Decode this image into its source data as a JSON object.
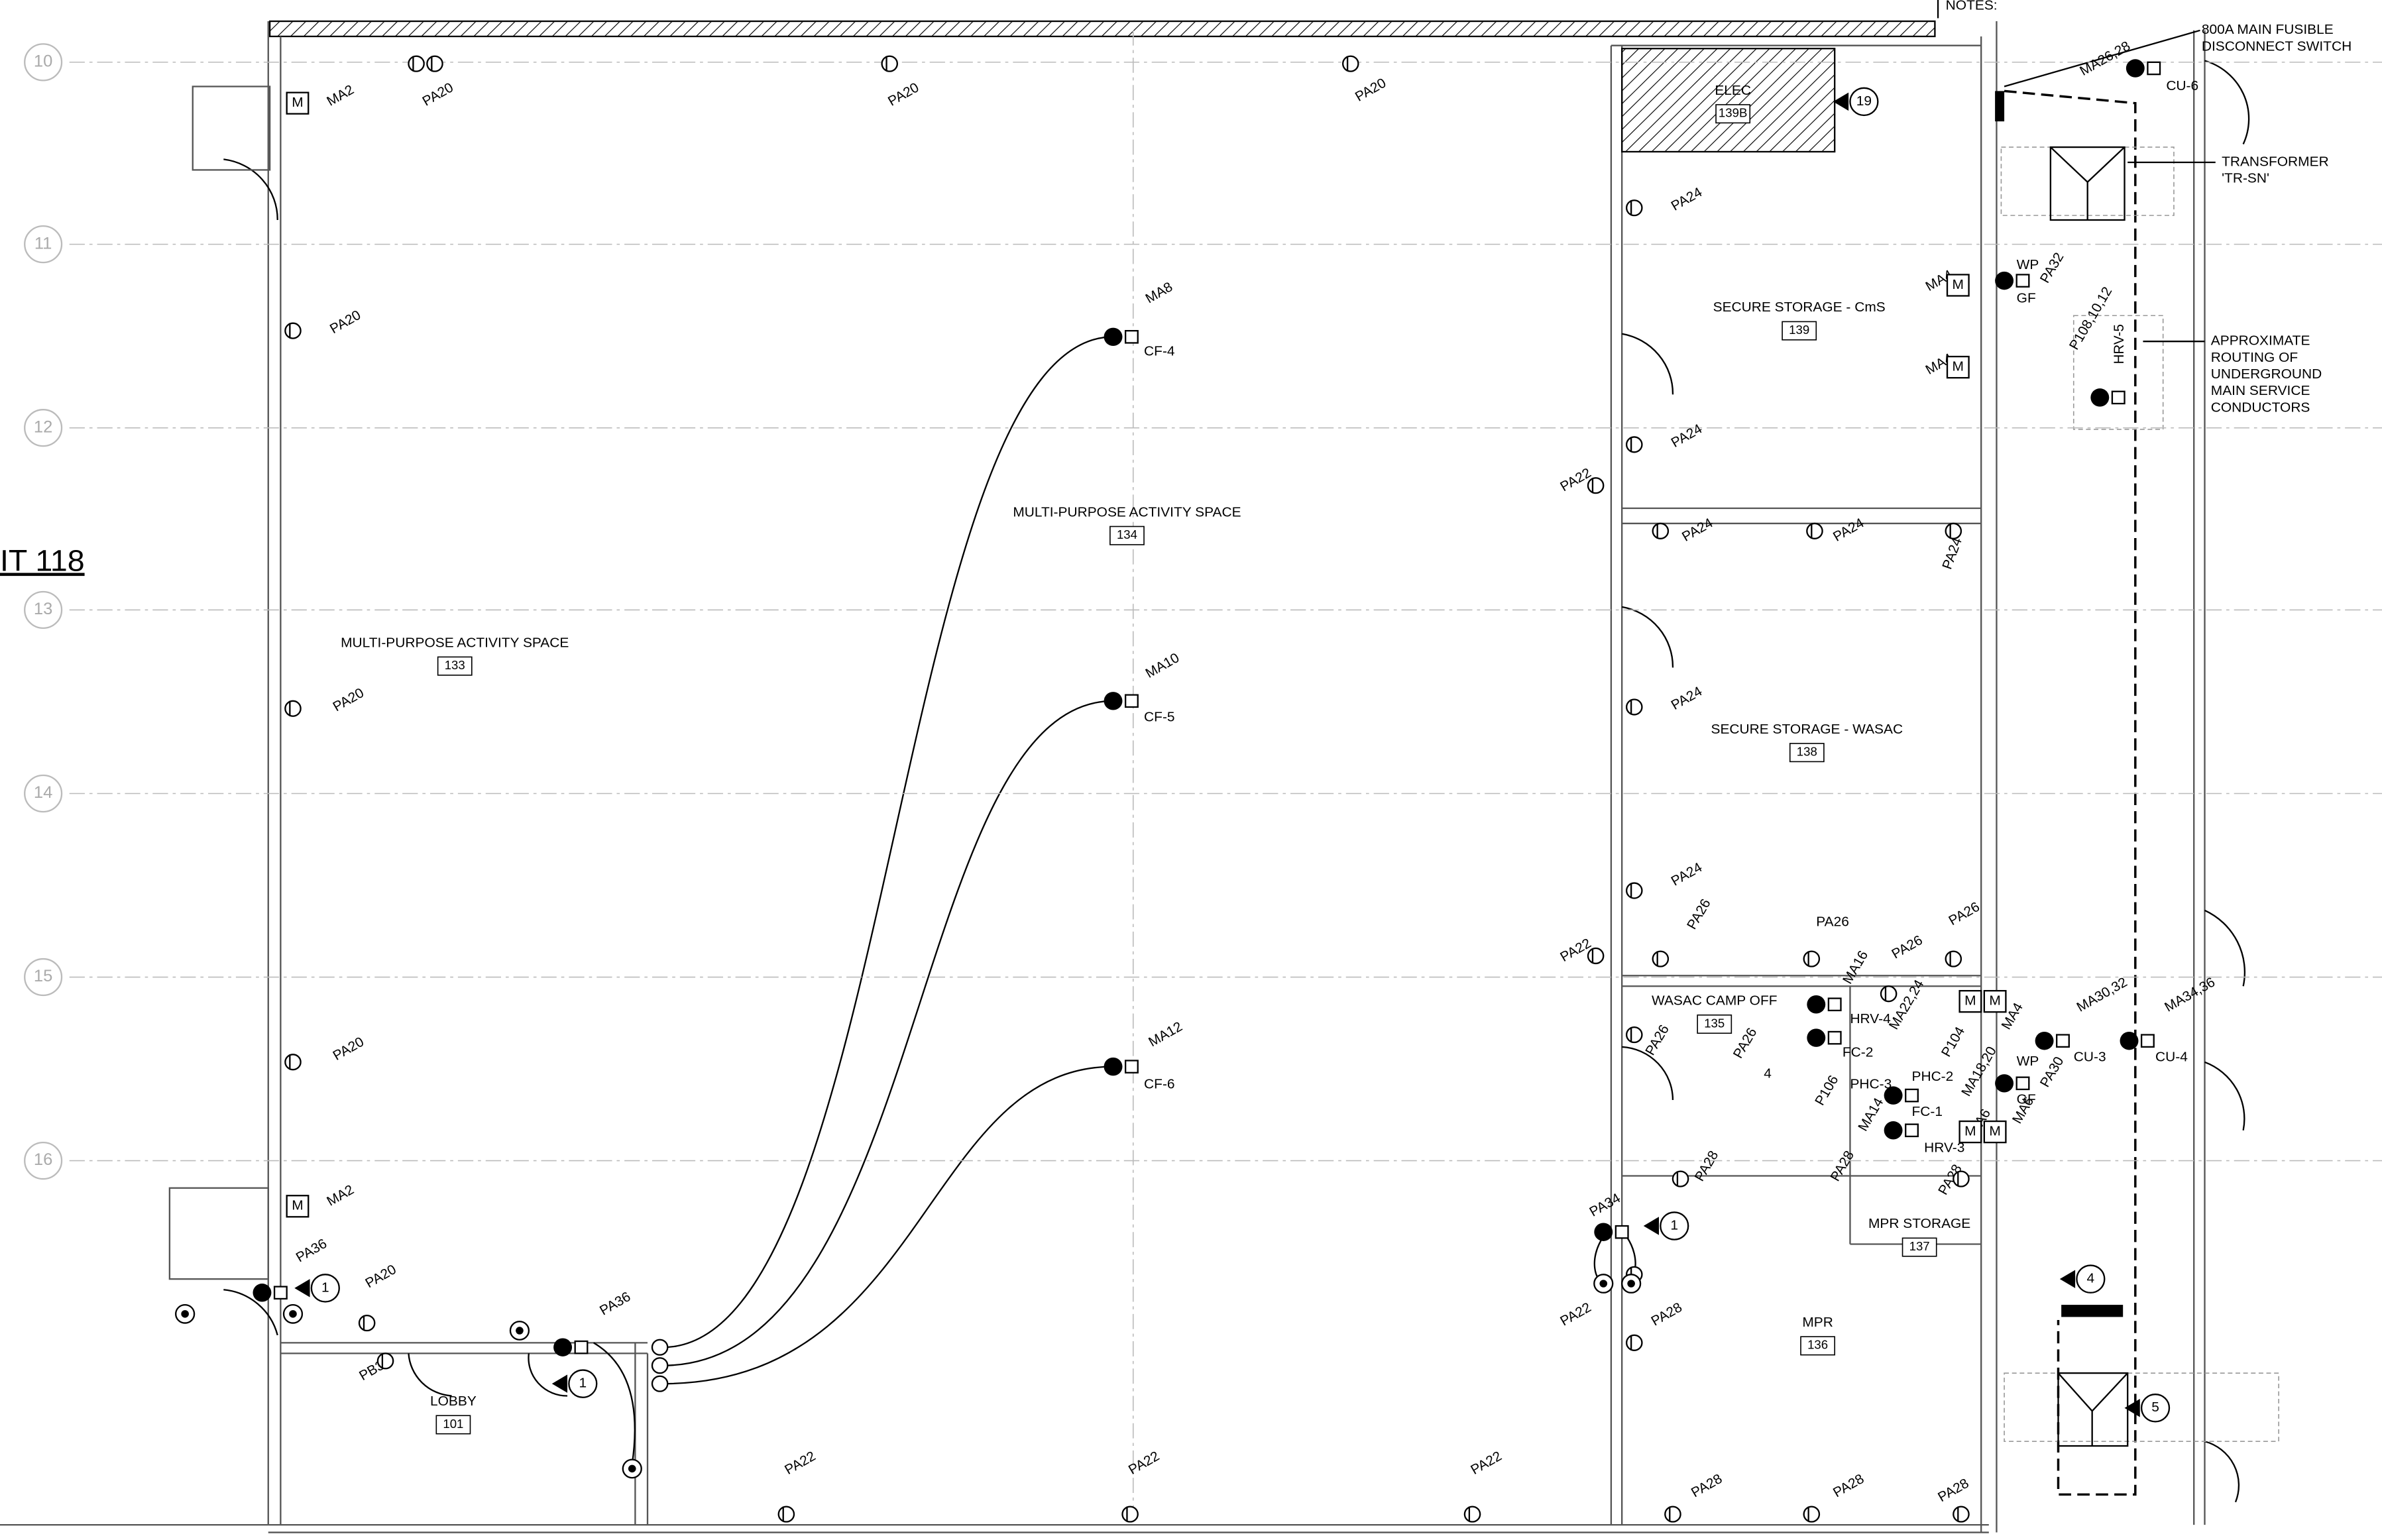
{
  "sheet_label": "IT 118",
  "notes_heading": "NOTES:",
  "grid_lines": [
    "10",
    "11",
    "12",
    "13",
    "14",
    "15",
    "16"
  ],
  "rooms": [
    {
      "name": "MULTI-PURPOSE ACTIVITY SPACE",
      "number": "133"
    },
    {
      "name": "MULTI-PURPOSE ACTIVITY SPACE",
      "number": "134"
    },
    {
      "name": "LOBBY",
      "number": "101"
    },
    {
      "name": "ELEC",
      "number": "139B"
    },
    {
      "name": "SECURE STORAGE - CmS",
      "number": "139"
    },
    {
      "name": "SECURE STORAGE - WASAC",
      "number": "138"
    },
    {
      "name": "WASAC CAMP OFF",
      "number": "135"
    },
    {
      "name": "MPR STORAGE",
      "number": "137"
    },
    {
      "name": "MPR",
      "number": "136"
    }
  ],
  "callouts": [
    [
      "800A MAIN FUSIBLE",
      "DISCONNECT SWITCH"
    ],
    [
      "TRANSFORMER",
      "'TR-SN'"
    ],
    [
      "APPROXIMATE",
      "ROUTING OF",
      "UNDERGROUND",
      "MAIN SERVICE",
      "CONDUCTORS"
    ]
  ],
  "keynotes": [
    "19",
    "1",
    "1",
    "1",
    "4",
    "5"
  ],
  "device_labels": [
    "PA20",
    "PA20",
    "PA20",
    "MA2",
    "PA20",
    "MA8",
    "CF-4",
    "MA10",
    "CF-5",
    "MA12",
    "CF-6",
    "PA20",
    "PA20",
    "MA2",
    "PA36",
    "PA20",
    "PB3",
    "PA36",
    "PA22",
    "PA22",
    "PA22",
    "PA28",
    "PA28",
    "PA28",
    "PA24",
    "PA24",
    "PA22",
    "PA24",
    "PA24",
    "PA24",
    "PA24",
    "PA24",
    "PA22",
    "PA26",
    "PA26",
    "PA26",
    "PA26",
    "MA16",
    "HRV-4",
    "MA22,24",
    "FC-2",
    "PA26",
    "4",
    "PHC-3",
    "PHC-2",
    "P104",
    "FC-1",
    "MA18,20",
    "P106",
    "MA14",
    "HRV-3",
    "MA6",
    "MA6",
    "MA4",
    "PA26",
    "PA28",
    "PA28",
    "PA28",
    "PA34",
    "PA22",
    "PA28",
    "MA26,28",
    "CU-6",
    "MA4",
    "MA4",
    "WP",
    "GF",
    "PA32",
    "P108,10,12",
    "HRV-5",
    "MA30,32",
    "CU-3",
    "MA34,36",
    "CU-4",
    "WP",
    "GF",
    "PA30"
  ],
  "motor_boxes": [
    "M",
    "M",
    "M",
    "M",
    "M",
    "M",
    "M",
    "M",
    "M",
    "M"
  ]
}
